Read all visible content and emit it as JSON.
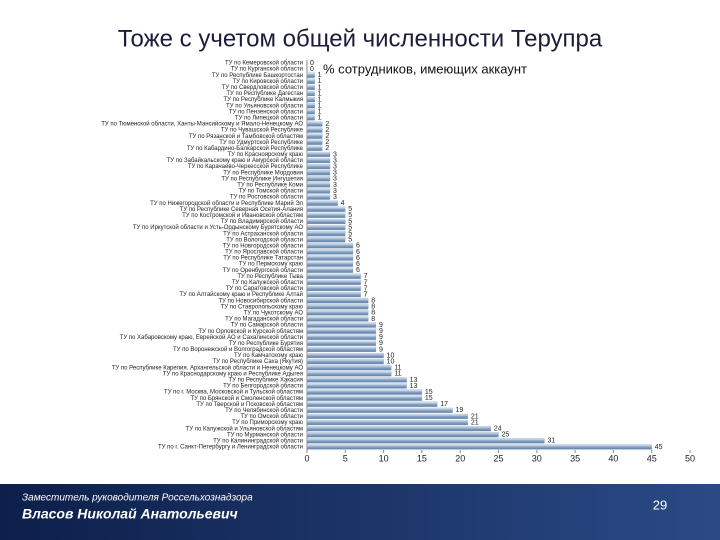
{
  "chart_data": {
    "type": "hbar",
    "title": "Тоже с учетом общей численности Терупра",
    "subtitle": "% сотрудников, имеющих аккаунт",
    "categories": [
      "ТУ по Кемеровской области",
      "ТУ по Курганской области",
      "ТУ по Республике Башкортостан",
      "ТУ по Кировской области",
      "ТУ по Свердловской области",
      "ТУ по Республике Дагестан",
      "ТУ по Республике Калмыкия",
      "ТУ по Ульяновской области",
      "ТУ по Пензенской области",
      "ТУ по Липецкой области",
      "ТУ по Тюменской области, Ханты-Мансийскому и Ямало-Ненецкому АО",
      "ТУ по Чувашской Республике",
      "ТУ по Рязанской и Тамбовской областям",
      "ТУ по Удмуртской Республике",
      "ТУ по Кабардино-Балкарской Республике",
      "ТУ по Красноярскому краю",
      "ТУ по Забайкальскому краю и Амурской области",
      "ТУ по Карачаево-Черкесской Республике",
      "ТУ по Республике Мордовия",
      "ТУ по Республике Ингушетия",
      "ТУ по Республике Коми",
      "ТУ по Томской области",
      "ТУ по Ростовской области",
      "ТУ по Нижегородской области и Республике Марий Эл",
      "ТУ по Республике Северная Осетия-Алания",
      "ТУ по Костромской и Ивановской областям",
      "ТУ по Владимирской области",
      "ТУ по Иркутской области и Усть-Ордынскому Бурятскому АО",
      "ТУ по Астраханской области",
      "ТУ по Вологодской области",
      "ТУ по Новгородской области",
      "ТУ по Ярославской области",
      "ТУ по Республике Татарстан",
      "ТУ по Пермскому краю",
      "ТУ по Оренбургской области",
      "ТУ по Республике Тыва",
      "ТУ по Калужской области",
      "ТУ по Саратовской области",
      "ТУ по Алтайскому краю и Республике Алтай",
      "ТУ по Новосибирской области",
      "ТУ по Ставропольскому краю",
      "ТУ по Чукотскому АО",
      "ТУ по Магаданской области",
      "ТУ по Самарской области",
      "ТУ по Орловской и Курской областям",
      "ТУ по Хабаровскому краю, Еврейской АО и Сахалинской области",
      "ТУ по Республике Бурятия",
      "ТУ по Воронежской и Волгоградской областям",
      "ТУ по Камчатскому краю",
      "ТУ по Республике Саха (Якутия)",
      "ТУ по Республике Карелия, Архангельской области и Ненецкому АО",
      "ТУ по Краснодарскому краю и Республике Адыгея",
      "ТУ по Республике Хакасия",
      "ТУ по Белгородской области",
      "ТУ по г. Москва, Московской и Тульской областям",
      "ТУ по Брянской и Смоленской областям",
      "ТУ по Тверской и Псковской областям",
      "ТУ по Челябинской области",
      "ТУ по Омской области",
      "ТУ по Приморскому краю",
      "ТУ по Калужской и Ульяновской областям",
      "ТУ по Мурманской области",
      "ТУ по Калининградской области",
      "ТУ по г. Санкт-Петербургу и Ленинградской области"
    ],
    "values": [
      0,
      0,
      1,
      1,
      1,
      1,
      1,
      1,
      1,
      1,
      2,
      2,
      2,
      2,
      2,
      3,
      3,
      3,
      3,
      3,
      3,
      3,
      3,
      4,
      5,
      5,
      5,
      5,
      5,
      5,
      6,
      6,
      6,
      6,
      6,
      7,
      7,
      7,
      7,
      8,
      8,
      8,
      8,
      9,
      9,
      9,
      9,
      9,
      10,
      10,
      11,
      11,
      13,
      13,
      15,
      15,
      17,
      19,
      21,
      21,
      24,
      25,
      31,
      45
    ],
    "color": "#86a3c4",
    "xlim": [
      0,
      50
    ],
    "xticks": [
      0,
      5,
      10,
      15,
      20,
      25,
      30,
      35,
      40,
      45,
      50
    ]
  },
  "footer": {
    "position": "Заместитель руководителя Россельхознадзора",
    "name": "Власов Николай Анатольевич",
    "page": "29"
  }
}
